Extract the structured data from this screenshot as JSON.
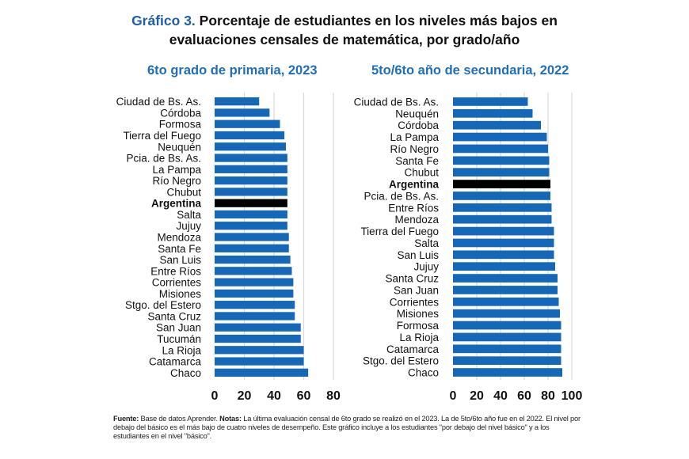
{
  "title": {
    "lead": "Gráfico 3.",
    "line1": " Porcentaje de estudiantes en los niveles más bajos en",
    "line2": "evaluaciones censales de matemática, por grado/año"
  },
  "colors": {
    "bar": "#1568b8",
    "highlight": "#000000",
    "grid": "#d9d9d9",
    "subtitle": "#1f6fb8",
    "title_lead": "#1f5fa8"
  },
  "chart_data": [
    {
      "type": "bar",
      "orientation": "horizontal",
      "title": "6to grado de primaria, 2023",
      "xlabel": "",
      "ylabel": "",
      "xlim": [
        0,
        80
      ],
      "ticks": [
        0,
        20,
        40,
        60,
        80
      ],
      "grid": true,
      "highlight": "Argentina",
      "categories": [
        "Ciudad de Bs. As.",
        "Córdoba",
        "Formosa",
        "Tierra del Fuego",
        "Neuquén",
        "Pcia. de Bs. As.",
        "La Pampa",
        "Río Negro",
        "Chubut",
        "Argentina",
        "Salta",
        "Jujuy",
        "Mendoza",
        "Santa Fe",
        "San Luis",
        "Entre Ríos",
        "Corrientes",
        "Misiones",
        "Stgo. del Estero",
        "Santa Cruz",
        "San Juan",
        "Tucumán",
        "La Rioja",
        "Catamarca",
        "Chaco"
      ],
      "values": [
        30,
        37,
        44,
        47,
        48,
        49,
        49,
        49,
        49,
        49,
        49,
        49,
        50,
        50,
        51,
        52,
        53,
        53,
        54,
        54,
        58,
        58,
        60,
        60,
        63
      ]
    },
    {
      "type": "bar",
      "orientation": "horizontal",
      "title": "5to/6to año de secundaria, 2022",
      "xlabel": "",
      "ylabel": "",
      "xlim": [
        0,
        100
      ],
      "ticks": [
        0,
        20,
        40,
        60,
        80,
        100
      ],
      "grid": true,
      "highlight": "Argentina",
      "categories": [
        "Ciudad de Bs. As.",
        "Neuquén",
        "Córdoba",
        "La Pampa",
        "Río Negro",
        "Santa Fe",
        "Chubut",
        "Argentina",
        "Pcia. de Bs. As.",
        "Entre Ríos",
        "Mendoza",
        "Tierra del Fuego",
        "Salta",
        "San Luis",
        "Jujuy",
        "Santa Cruz",
        "San Juan",
        "Corrientes",
        "Misiones",
        "Formosa",
        "La Rioja",
        "Catamarca",
        "Stgo. del Estero",
        "Chaco"
      ],
      "values": [
        63,
        67,
        74,
        79,
        80,
        81,
        81,
        82,
        82,
        83,
        83,
        85,
        85,
        85,
        86,
        88,
        88,
        89,
        90,
        91,
        91,
        91,
        91,
        92
      ]
    }
  ],
  "notes": {
    "source_label": "Fuente:",
    "source_text": " Base de datos Aprender. ",
    "notes_label": "Notas:",
    "notes_text": " La última evaluación censal de 6to grado se realizó en el 2023. La de 5to/6to año fue en el 2022. El nivel por debajo del básico es el más bajo de cuatro niveles de desempeño. Este gráfico incluye a los estudiantes \"por debajo del nivel básico\" y a los estudiantes en el nivel \"básico\"."
  }
}
